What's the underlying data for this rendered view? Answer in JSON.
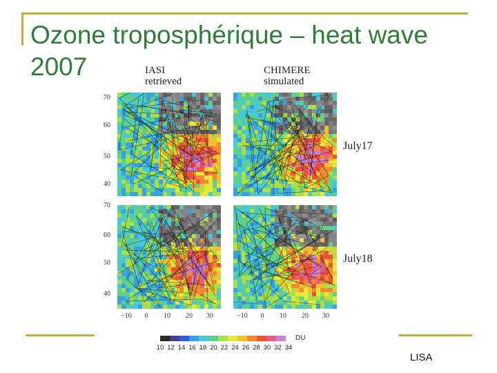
{
  "slide": {
    "title": "Ozone troposphérique – heat wave 2007",
    "footer": "LISA"
  },
  "figure": {
    "columns": [
      {
        "line1": "IASI",
        "line2": "retrieved"
      },
      {
        "line1": "CHIMERE",
        "line2": "simulated"
      }
    ],
    "rows": [
      "July17",
      "July18"
    ],
    "lat_labels_top": [
      "70",
      "60",
      "50",
      "40"
    ],
    "lat_labels_bottom": [
      "70",
      "60",
      "50",
      "40"
    ],
    "lon_labels": [
      "−10",
      "0",
      "10",
      "20",
      "30"
    ],
    "colorbar": {
      "unit": "DU",
      "ticks": [
        "10",
        "12",
        "14",
        "16",
        "18",
        "20",
        "22",
        "24",
        "26",
        "28",
        "30",
        "32",
        "34"
      ],
      "colors": [
        "#2b2b2b",
        "#4a3a8c",
        "#2f5fd0",
        "#3aa0e0",
        "#46c8d8",
        "#5fd08a",
        "#a8e04a",
        "#e8e83a",
        "#f0c030",
        "#f08a30",
        "#f0503a",
        "#e0608a",
        "#d080d0"
      ]
    }
  }
}
